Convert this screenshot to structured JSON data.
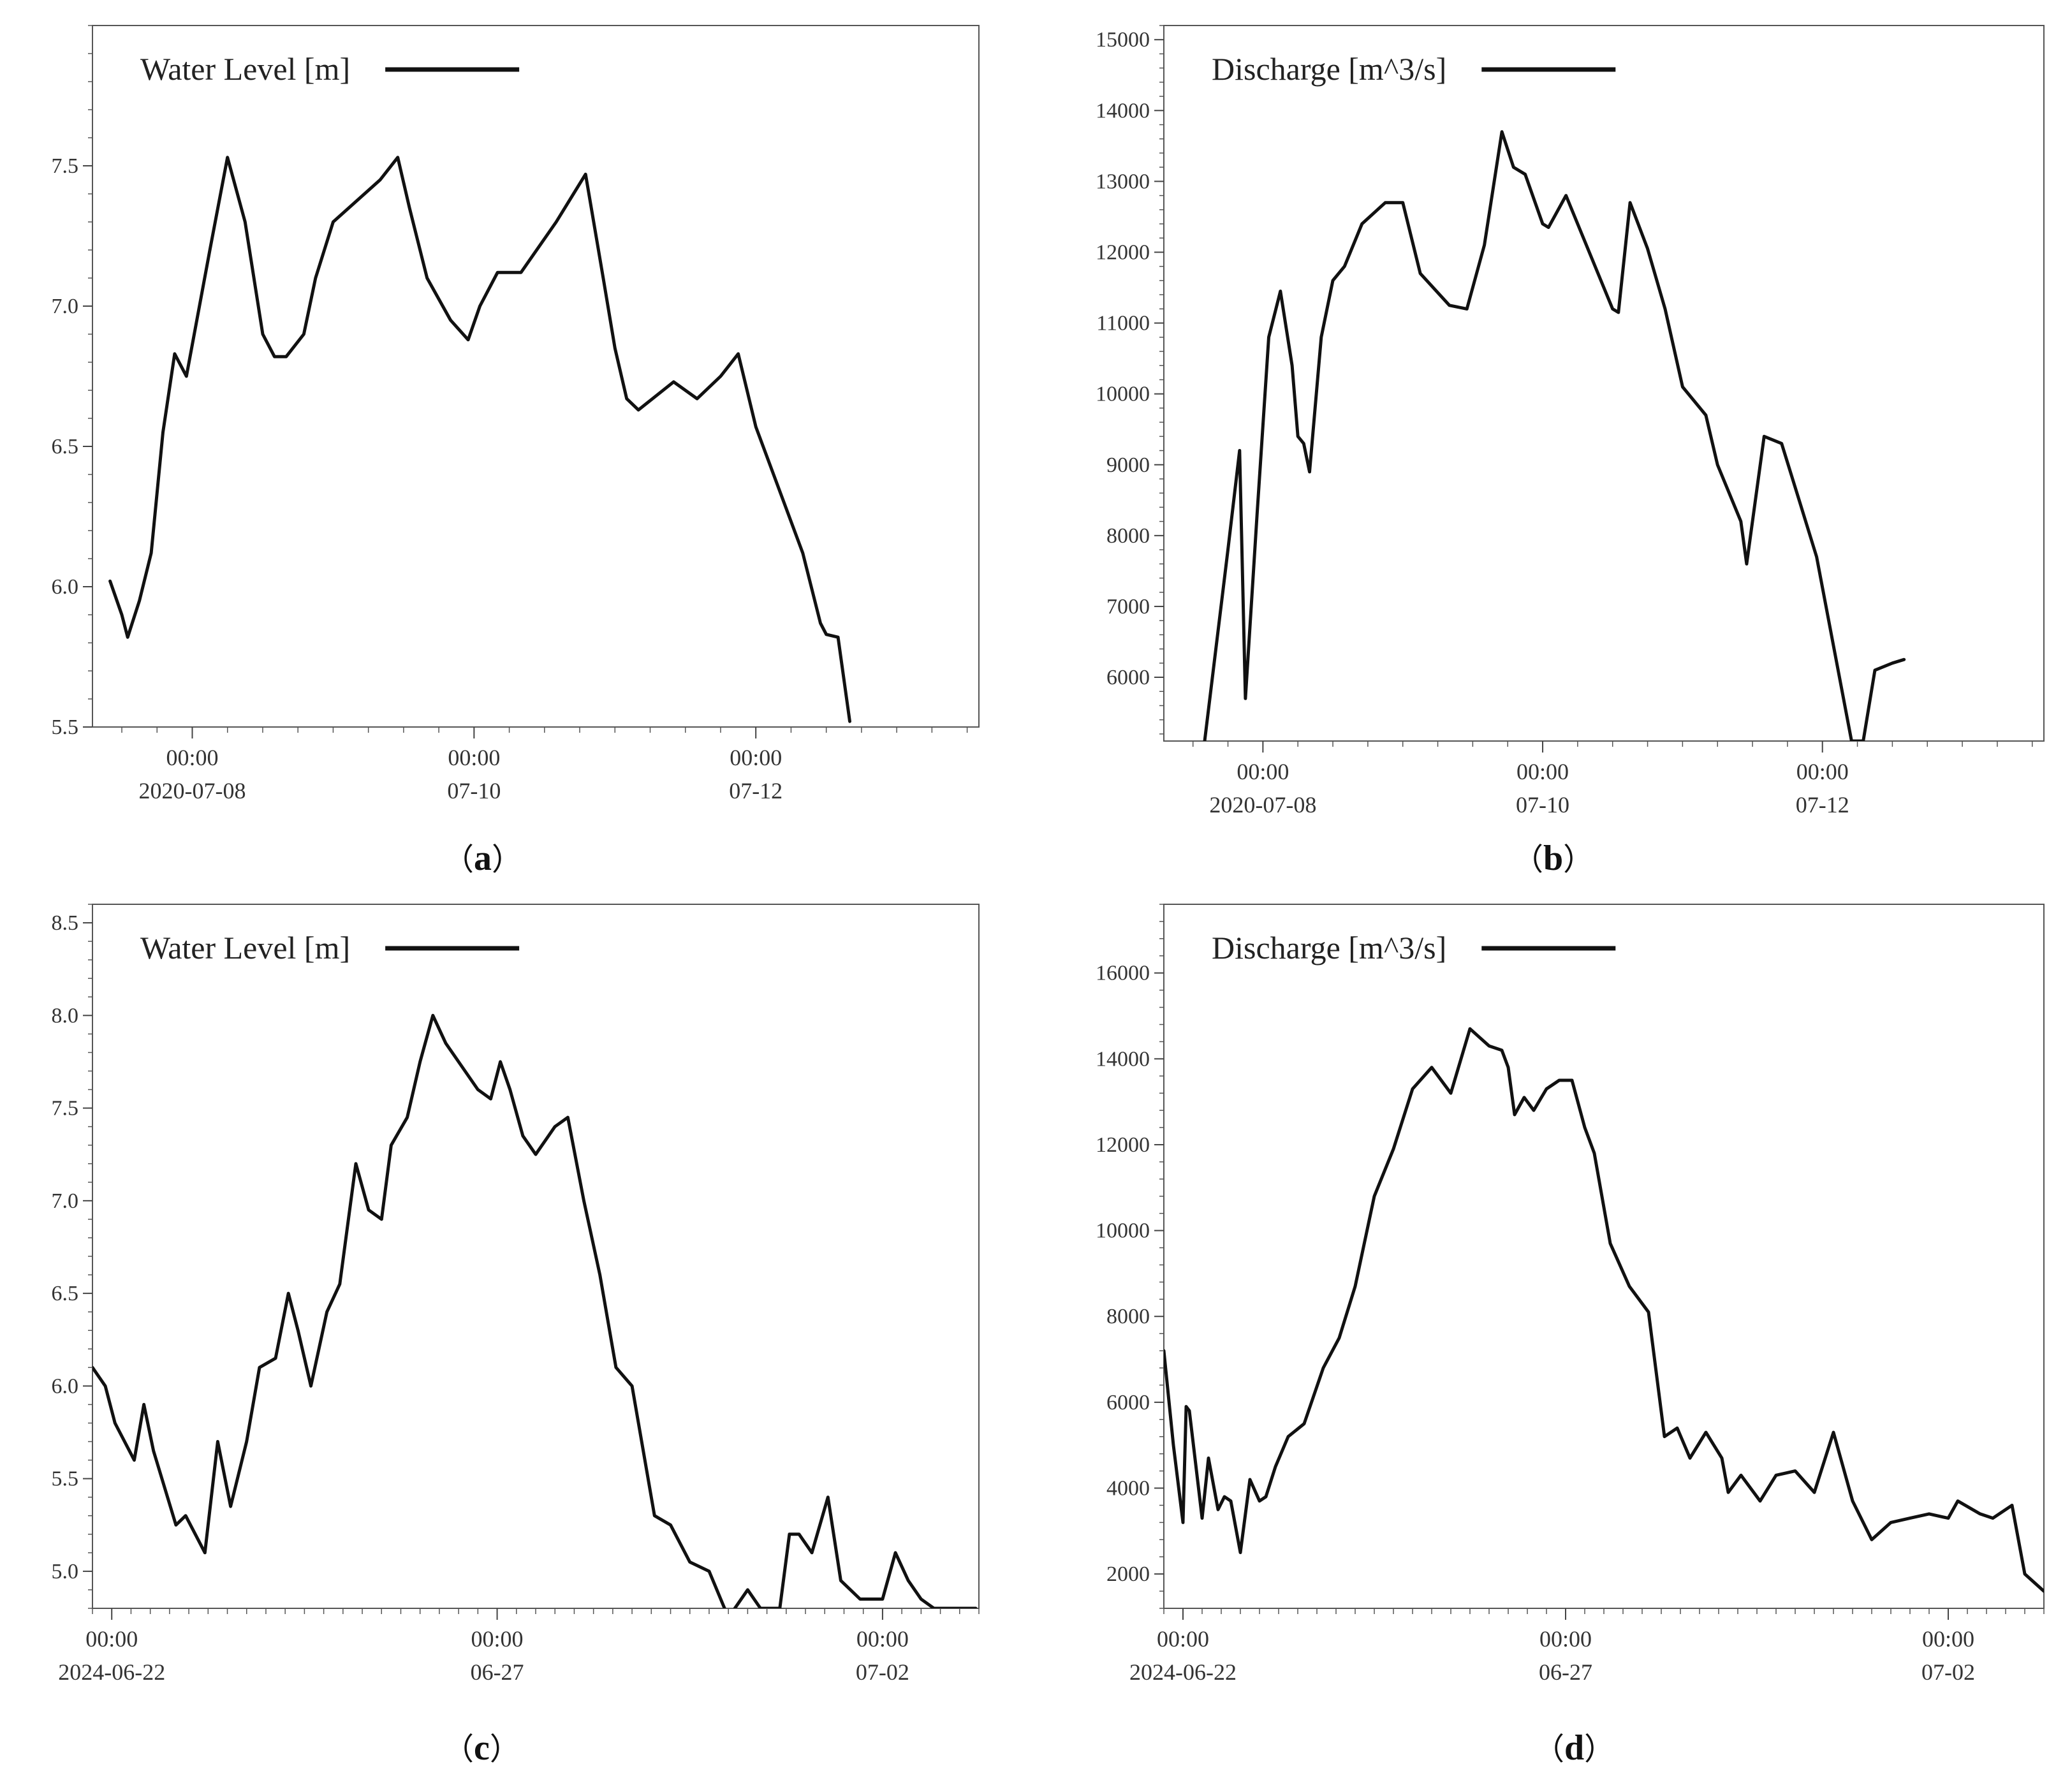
{
  "captions": [
    "a",
    "b",
    "c",
    "d"
  ],
  "line_color": "#111111",
  "chart_data": [
    {
      "type": "line",
      "panel": "a",
      "legend": "Water Level [m]",
      "legend_position": "top-left",
      "grid": false,
      "x_start": "2020-07-07T07:00",
      "x_end": "2020-07-13T14:00",
      "ylim": [
        5.5,
        8.0
      ],
      "yticks": [
        5.5,
        6.0,
        6.5,
        7.0,
        7.5
      ],
      "ytick_labels": [
        "5.5",
        "6.0",
        "6.5",
        "7.0",
        "7.5"
      ],
      "xticks": [
        "2020-07-08T00:00",
        "2020-07-10T00:00",
        "2020-07-12T00:00"
      ],
      "xtick_labels": [
        [
          "00:00",
          "2020-07-08"
        ],
        [
          "00:00",
          "07-10"
        ],
        [
          "00:00",
          "07-12"
        ]
      ],
      "series": [
        {
          "x": [
            "2020-07-07T10:00",
            "2020-07-07T12:00",
            "2020-07-07T13:00",
            "2020-07-07T15:00",
            "2020-07-07T17:00",
            "2020-07-07T19:00",
            "2020-07-07T21:00",
            "2020-07-07T23:00",
            "2020-07-08T03:00",
            "2020-07-08T06:00",
            "2020-07-08T09:00",
            "2020-07-08T12:00",
            "2020-07-08T14:00",
            "2020-07-08T16:00",
            "2020-07-08T19:00",
            "2020-07-08T21:00",
            "2020-07-09T00:00",
            "2020-07-09T08:00",
            "2020-07-09T11:00",
            "2020-07-09T13:00",
            "2020-07-09T16:00",
            "2020-07-09T20:00",
            "2020-07-09T23:00",
            "2020-07-10T01:00",
            "2020-07-10T04:00",
            "2020-07-10T08:00",
            "2020-07-10T14:00",
            "2020-07-10T19:00",
            "2020-07-10T22:00",
            "2020-07-11T00:00",
            "2020-07-11T02:00",
            "2020-07-11T04:00",
            "2020-07-11T10:00",
            "2020-07-11T14:00",
            "2020-07-11T18:00",
            "2020-07-11T21:00",
            "2020-07-12T00:00",
            "2020-07-12T08:00",
            "2020-07-12T11:00",
            "2020-07-12T12:00",
            "2020-07-12T14:00",
            "2020-07-12T16:00"
          ],
          "y": [
            6.02,
            5.9,
            5.82,
            5.95,
            6.12,
            6.55,
            6.83,
            6.75,
            7.2,
            7.53,
            7.3,
            6.9,
            6.82,
            6.82,
            6.9,
            7.1,
            7.3,
            7.45,
            7.53,
            7.35,
            7.1,
            6.95,
            6.88,
            7.0,
            7.12,
            7.12,
            7.3,
            7.47,
            7.1,
            6.85,
            6.67,
            6.63,
            6.73,
            6.67,
            6.75,
            6.83,
            6.57,
            6.12,
            5.87,
            5.83,
            5.82,
            5.52
          ]
        }
      ]
    },
    {
      "type": "line",
      "panel": "b",
      "legend": "Discharge [m^3/s]",
      "legend_position": "top-left",
      "grid": false,
      "x_start": "2020-07-07T07:00",
      "x_end": "2020-07-13T14:00",
      "ylim": [
        5100,
        15200
      ],
      "yticks": [
        6000,
        7000,
        8000,
        9000,
        10000,
        11000,
        12000,
        13000,
        14000,
        15000
      ],
      "ytick_labels": [
        "6000",
        "7000",
        "8000",
        "9000",
        "10000",
        "11000",
        "12000",
        "13000",
        "14000",
        "15000"
      ],
      "xticks": [
        "2020-07-08T00:00",
        "2020-07-10T00:00",
        "2020-07-12T00:00"
      ],
      "xtick_labels": [
        [
          "00:00",
          "2020-07-08"
        ],
        [
          "00:00",
          "07-10"
        ],
        [
          "00:00",
          "07-12"
        ]
      ],
      "series": [
        {
          "x": [
            "2020-07-07T14:00",
            "2020-07-07T18:00",
            "2020-07-07T20:00",
            "2020-07-07T21:00",
            "2020-07-07T23:00",
            "2020-07-08T01:00",
            "2020-07-08T03:00",
            "2020-07-08T05:00",
            "2020-07-08T06:00",
            "2020-07-08T07:00",
            "2020-07-08T08:00",
            "2020-07-08T10:00",
            "2020-07-08T12:00",
            "2020-07-08T14:00",
            "2020-07-08T17:00",
            "2020-07-08T21:00",
            "2020-07-09T00:00",
            "2020-07-09T03:00",
            "2020-07-09T08:00",
            "2020-07-09T11:00",
            "2020-07-09T14:00",
            "2020-07-09T17:00",
            "2020-07-09T19:00",
            "2020-07-09T21:00",
            "2020-07-10T00:00",
            "2020-07-10T01:00",
            "2020-07-10T04:00",
            "2020-07-10T07:00",
            "2020-07-10T10:00",
            "2020-07-10T12:00",
            "2020-07-10T13:00",
            "2020-07-10T15:00",
            "2020-07-10T18:00",
            "2020-07-10T21:00",
            "2020-07-11T00:00",
            "2020-07-11T04:00",
            "2020-07-11T06:00",
            "2020-07-11T10:00",
            "2020-07-11T11:00",
            "2020-07-11T14:00",
            "2020-07-11T17:00",
            "2020-07-11T20:00",
            "2020-07-11T23:00",
            "2020-07-12T05:00",
            "2020-07-12T07:00",
            "2020-07-12T09:00",
            "2020-07-12T12:00",
            "2020-07-12T14:00"
          ],
          "y": [
            5100,
            7800,
            9200,
            5700,
            8300,
            10800,
            11450,
            10400,
            9400,
            9300,
            8900,
            10800,
            11600,
            11800,
            12400,
            12700,
            12700,
            11700,
            11250,
            11200,
            12100,
            13700,
            13200,
            13100,
            12400,
            12350,
            12800,
            12200,
            11600,
            11200,
            11150,
            12700,
            12050,
            11200,
            10100,
            9700,
            9000,
            8200,
            7600,
            9400,
            9300,
            8500,
            7700,
            5100,
            5100,
            6100,
            6200,
            6250
          ]
        }
      ]
    },
    {
      "type": "line",
      "panel": "c",
      "legend": "Water Level [m]",
      "legend_position": "top-left",
      "grid": false,
      "x_start": "2024-06-21T18:00",
      "x_end": "2024-07-03T06:00",
      "ylim": [
        4.8,
        8.6
      ],
      "yticks": [
        5.0,
        5.5,
        6.0,
        6.5,
        7.0,
        7.5,
        8.0,
        8.5
      ],
      "ytick_labels": [
        "5.0",
        "5.5",
        "6.0",
        "6.5",
        "7.0",
        "7.5",
        "8.0",
        "8.5"
      ],
      "xticks": [
        "2024-06-22T00:00",
        "2024-06-27T00:00",
        "2024-07-02T00:00"
      ],
      "xtick_labels": [
        [
          "00:00",
          "2024-06-22"
        ],
        [
          "00:00",
          "06-27"
        ],
        [
          "00:00",
          "07-02"
        ]
      ],
      "series": [
        {
          "x": [
            "2024-06-21T18:00",
            "2024-06-21T22:00",
            "2024-06-22T01:00",
            "2024-06-22T07:00",
            "2024-06-22T10:00",
            "2024-06-22T13:00",
            "2024-06-22T20:00",
            "2024-06-22T23:00",
            "2024-06-23T05:00",
            "2024-06-23T09:00",
            "2024-06-23T13:00",
            "2024-06-23T18:00",
            "2024-06-23T22:00",
            "2024-06-24T03:00",
            "2024-06-24T07:00",
            "2024-06-24T10:00",
            "2024-06-24T14:00",
            "2024-06-24T19:00",
            "2024-06-24T23:00",
            "2024-06-25T04:00",
            "2024-06-25T08:00",
            "2024-06-25T12:00",
            "2024-06-25T15:00",
            "2024-06-25T20:00",
            "2024-06-26T00:00",
            "2024-06-26T04:00",
            "2024-06-26T08:00",
            "2024-06-26T14:00",
            "2024-06-26T18:00",
            "2024-06-26T22:00",
            "2024-06-27T01:00",
            "2024-06-27T04:00",
            "2024-06-27T08:00",
            "2024-06-27T12:00",
            "2024-06-27T18:00",
            "2024-06-27T22:00",
            "2024-06-28T03:00",
            "2024-06-28T08:00",
            "2024-06-28T13:00",
            "2024-06-28T18:00",
            "2024-06-29T01:00",
            "2024-06-29T06:00",
            "2024-06-29T12:00",
            "2024-06-29T18:00",
            "2024-06-30T00:00",
            "2024-06-30T06:00",
            "2024-06-30T10:00",
            "2024-06-30T16:00",
            "2024-06-30T19:00",
            "2024-06-30T22:00",
            "2024-07-01T02:00",
            "2024-07-01T07:00",
            "2024-07-01T11:00",
            "2024-07-01T17:00",
            "2024-07-01T20:00",
            "2024-07-02T00:00",
            "2024-07-02T04:00",
            "2024-07-02T08:00",
            "2024-07-02T12:00",
            "2024-07-02T16:00",
            "2024-07-02T20:00",
            "2024-07-03T01:00",
            "2024-07-03T05:00"
          ],
          "y": [
            6.1,
            6.0,
            5.8,
            5.6,
            5.9,
            5.65,
            5.25,
            5.3,
            5.1,
            5.7,
            5.35,
            5.7,
            6.1,
            6.15,
            6.5,
            6.3,
            6.0,
            6.4,
            6.55,
            7.2,
            6.95,
            6.9,
            7.3,
            7.45,
            7.75,
            8.0,
            7.85,
            7.7,
            7.6,
            7.55,
            7.75,
            7.6,
            7.35,
            7.25,
            7.4,
            7.45,
            7.0,
            6.6,
            6.1,
            6.0,
            5.3,
            5.25,
            5.05,
            5.0,
            4.75,
            4.9,
            4.8,
            4.8,
            5.2,
            5.2,
            5.1,
            5.4,
            4.95,
            4.85,
            4.85,
            4.85,
            5.1,
            4.95,
            4.85,
            4.8,
            4.8,
            4.8,
            4.8
          ]
        }
      ]
    },
    {
      "type": "line",
      "panel": "d",
      "legend": "Discharge [m^3/s]",
      "legend_position": "top-left",
      "grid": false,
      "x_start": "2024-06-21T18:00",
      "x_end": "2024-07-03T06:00",
      "ylim": [
        1200,
        17600
      ],
      "yticks": [
        2000,
        4000,
        6000,
        8000,
        10000,
        12000,
        14000,
        16000
      ],
      "ytick_labels": [
        "2000",
        "4000",
        "6000",
        "8000",
        "10000",
        "12000",
        "14000",
        "16000"
      ],
      "xticks": [
        "2024-06-22T00:00",
        "2024-06-27T00:00",
        "2024-07-02T00:00"
      ],
      "xtick_labels": [
        [
          "00:00",
          "2024-06-22"
        ],
        [
          "00:00",
          "06-27"
        ],
        [
          "00:00",
          "07-02"
        ]
      ],
      "series": [
        {
          "x": [
            "2024-06-21T18:00",
            "2024-06-21T21:00",
            "2024-06-22T00:00",
            "2024-06-22T01:00",
            "2024-06-22T02:00",
            "2024-06-22T06:00",
            "2024-06-22T08:00",
            "2024-06-22T11:00",
            "2024-06-22T13:00",
            "2024-06-22T15:00",
            "2024-06-22T18:00",
            "2024-06-22T21:00",
            "2024-06-23T00:00",
            "2024-06-23T02:00",
            "2024-06-23T05:00",
            "2024-06-23T09:00",
            "2024-06-23T14:00",
            "2024-06-23T20:00",
            "2024-06-24T01:00",
            "2024-06-24T06:00",
            "2024-06-24T12:00",
            "2024-06-24T18:00",
            "2024-06-25T00:00",
            "2024-06-25T06:00",
            "2024-06-25T12:00",
            "2024-06-25T18:00",
            "2024-06-26T00:00",
            "2024-06-26T04:00",
            "2024-06-26T06:00",
            "2024-06-26T08:00",
            "2024-06-26T11:00",
            "2024-06-26T14:00",
            "2024-06-26T18:00",
            "2024-06-26T22:00",
            "2024-06-27T02:00",
            "2024-06-27T06:00",
            "2024-06-27T09:00",
            "2024-06-27T14:00",
            "2024-06-27T20:00",
            "2024-06-28T02:00",
            "2024-06-28T07:00",
            "2024-06-28T11:00",
            "2024-06-28T15:00",
            "2024-06-28T20:00",
            "2024-06-29T01:00",
            "2024-06-29T03:00",
            "2024-06-29T07:00",
            "2024-06-29T13:00",
            "2024-06-29T18:00",
            "2024-06-30T00:00",
            "2024-06-30T06:00",
            "2024-06-30T12:00",
            "2024-06-30T18:00",
            "2024-07-01T00:00",
            "2024-07-01T06:00",
            "2024-07-01T12:00",
            "2024-07-01T18:00",
            "2024-07-02T00:00",
            "2024-07-02T03:00",
            "2024-07-02T10:00",
            "2024-07-02T14:00",
            "2024-07-02T20:00",
            "2024-07-03T00:00",
            "2024-07-03T03:00",
            "2024-07-03T06:00"
          ],
          "y": [
            7200,
            5000,
            3200,
            5900,
            5800,
            3300,
            4700,
            3500,
            3800,
            3700,
            2500,
            4200,
            3700,
            3800,
            4500,
            5200,
            5500,
            6800,
            7500,
            8700,
            10800,
            11900,
            13300,
            13800,
            13200,
            14700,
            14300,
            14200,
            13800,
            12700,
            13100,
            12800,
            13300,
            13500,
            13500,
            12400,
            11800,
            9700,
            8700,
            8100,
            5200,
            5400,
            4700,
            5300,
            4700,
            3900,
            4300,
            3700,
            4300,
            4400,
            3900,
            5300,
            3700,
            2800,
            3200,
            3300,
            3400,
            3300,
            3700,
            3400,
            3300,
            3600,
            2000,
            1800,
            1600
          ]
        }
      ]
    }
  ]
}
